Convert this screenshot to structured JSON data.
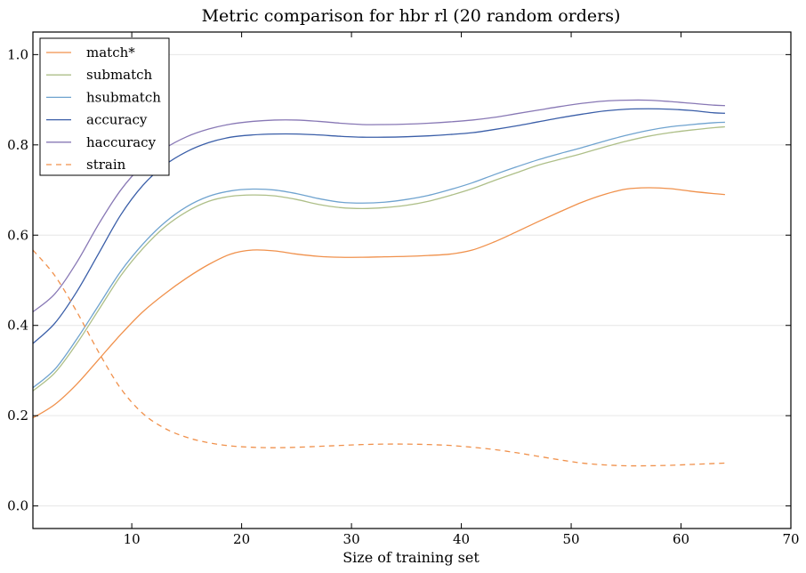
{
  "chart_data": {
    "type": "line",
    "title": "Metric comparison for hbr rl (20 random orders)",
    "xlabel": "Size of training set",
    "ylabel": "",
    "xlim": [
      1,
      70
    ],
    "ylim": [
      -0.05,
      1.05
    ],
    "xticks": [
      10,
      20,
      30,
      40,
      50,
      60,
      70
    ],
    "yticks": [
      0.0,
      0.2,
      0.4,
      0.6,
      0.8,
      1.0
    ],
    "xtick_labels": [
      "10",
      "20",
      "30",
      "40",
      "50",
      "60",
      "70"
    ],
    "ytick_labels": [
      "0.0",
      "0.2",
      "0.4",
      "0.6",
      "0.8",
      "1.0"
    ],
    "grid": "horizontal",
    "legend_position": "top-left",
    "series": [
      {
        "name": "match*",
        "color": "#f0914c",
        "dash": "solid",
        "x": [
          1,
          3,
          5,
          7,
          9,
          11,
          13,
          15,
          17,
          19,
          21,
          23,
          25,
          27,
          29,
          31,
          33,
          35,
          37,
          39,
          41,
          43,
          45,
          47,
          49,
          51,
          53,
          55,
          57,
          59,
          61,
          63,
          64
        ],
        "y": [
          0.195,
          0.225,
          0.27,
          0.325,
          0.38,
          0.43,
          0.47,
          0.505,
          0.535,
          0.558,
          0.567,
          0.565,
          0.558,
          0.553,
          0.551,
          0.551,
          0.552,
          0.553,
          0.555,
          0.558,
          0.567,
          0.585,
          0.607,
          0.63,
          0.652,
          0.673,
          0.69,
          0.702,
          0.705,
          0.703,
          0.697,
          0.692,
          0.69
        ]
      },
      {
        "name": "submatch",
        "color": "#aebf88",
        "dash": "solid",
        "x": [
          1,
          3,
          5,
          7,
          9,
          11,
          13,
          15,
          17,
          19,
          21,
          23,
          25,
          27,
          29,
          31,
          33,
          35,
          37,
          39,
          41,
          43,
          45,
          47,
          49,
          51,
          53,
          55,
          57,
          59,
          61,
          63,
          64
        ],
        "y": [
          0.255,
          0.295,
          0.36,
          0.435,
          0.51,
          0.57,
          0.618,
          0.652,
          0.675,
          0.686,
          0.689,
          0.687,
          0.679,
          0.668,
          0.661,
          0.659,
          0.661,
          0.666,
          0.675,
          0.688,
          0.703,
          0.721,
          0.738,
          0.755,
          0.768,
          0.781,
          0.795,
          0.808,
          0.819,
          0.827,
          0.833,
          0.838,
          0.84
        ]
      },
      {
        "name": "hsubmatch",
        "color": "#6fa3cf",
        "dash": "solid",
        "x": [
          1,
          3,
          5,
          7,
          9,
          11,
          13,
          15,
          17,
          19,
          21,
          23,
          25,
          27,
          29,
          31,
          33,
          35,
          37,
          39,
          41,
          43,
          45,
          47,
          49,
          51,
          53,
          55,
          57,
          59,
          61,
          63,
          64
        ],
        "y": [
          0.262,
          0.303,
          0.37,
          0.445,
          0.52,
          0.58,
          0.628,
          0.663,
          0.686,
          0.698,
          0.702,
          0.7,
          0.692,
          0.681,
          0.673,
          0.671,
          0.673,
          0.679,
          0.688,
          0.701,
          0.716,
          0.734,
          0.751,
          0.767,
          0.781,
          0.794,
          0.808,
          0.821,
          0.832,
          0.84,
          0.845,
          0.849,
          0.85
        ]
      },
      {
        "name": "accuracy",
        "color": "#3a5ea8",
        "dash": "solid",
        "x": [
          1,
          3,
          5,
          7,
          9,
          11,
          13,
          15,
          17,
          19,
          21,
          23,
          25,
          27,
          29,
          31,
          33,
          35,
          37,
          39,
          41,
          43,
          45,
          47,
          49,
          51,
          53,
          55,
          57,
          59,
          61,
          63,
          64
        ],
        "y": [
          0.36,
          0.405,
          0.475,
          0.56,
          0.645,
          0.71,
          0.755,
          0.785,
          0.805,
          0.817,
          0.822,
          0.824,
          0.824,
          0.822,
          0.819,
          0.817,
          0.817,
          0.818,
          0.82,
          0.823,
          0.827,
          0.834,
          0.842,
          0.851,
          0.86,
          0.868,
          0.875,
          0.879,
          0.88,
          0.879,
          0.876,
          0.871,
          0.87
        ]
      },
      {
        "name": "haccuracy",
        "color": "#8878b5",
        "dash": "solid",
        "x": [
          1,
          3,
          5,
          7,
          9,
          11,
          13,
          15,
          17,
          19,
          21,
          23,
          25,
          27,
          29,
          31,
          33,
          35,
          37,
          39,
          41,
          43,
          45,
          47,
          49,
          51,
          53,
          55,
          57,
          59,
          61,
          63,
          64
        ],
        "y": [
          0.43,
          0.47,
          0.54,
          0.625,
          0.7,
          0.755,
          0.792,
          0.818,
          0.835,
          0.846,
          0.852,
          0.855,
          0.855,
          0.852,
          0.848,
          0.845,
          0.845,
          0.846,
          0.848,
          0.851,
          0.855,
          0.861,
          0.869,
          0.877,
          0.885,
          0.892,
          0.897,
          0.899,
          0.899,
          0.896,
          0.892,
          0.888,
          0.887
        ]
      },
      {
        "name": "strain",
        "color": "#f0914c",
        "dash": "dashed",
        "x": [
          1,
          3,
          5,
          7,
          9,
          11,
          13,
          15,
          17,
          19,
          21,
          23,
          25,
          27,
          29,
          31,
          33,
          35,
          37,
          39,
          41,
          43,
          45,
          47,
          49,
          51,
          53,
          55,
          57,
          59,
          61,
          63,
          64
        ],
        "y": [
          0.567,
          0.51,
          0.43,
          0.34,
          0.26,
          0.205,
          0.172,
          0.152,
          0.14,
          0.133,
          0.13,
          0.129,
          0.13,
          0.132,
          0.134,
          0.136,
          0.137,
          0.137,
          0.136,
          0.134,
          0.13,
          0.125,
          0.118,
          0.11,
          0.102,
          0.095,
          0.091,
          0.089,
          0.089,
          0.09,
          0.092,
          0.094,
          0.095
        ]
      }
    ]
  }
}
